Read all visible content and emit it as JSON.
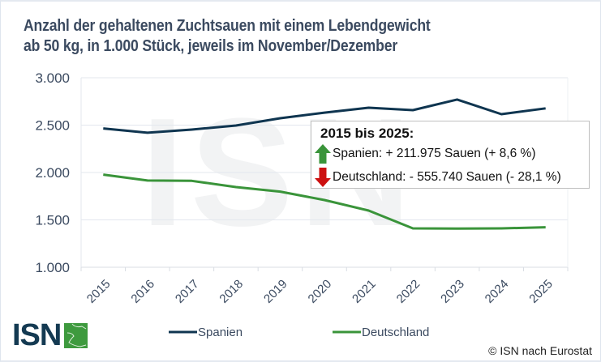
{
  "title": {
    "line1": "Anzahl der gehaltenen Zuchtsauen mit einem Lebendgewicht",
    "line2": "ab 50 kg, in 1.000 Stück, jeweils im November/Dezember"
  },
  "watermark": "ISN",
  "annotation": {
    "title": "2015 bis 2025:",
    "rows": [
      {
        "icon": "arrow-up-icon",
        "color": "#3a943a",
        "text": "Spanien: + 211.975 Sauen (+ 8,6 %)"
      },
      {
        "icon": "arrow-down-icon",
        "color": "#cc1010",
        "text": "Deutschland: - 555.740 Sauen (- 28,1 %)"
      }
    ]
  },
  "logo": {
    "text": "ISN",
    "box_color": "#3e9a3e"
  },
  "source": "© ISN nach Eurostat",
  "chart_data": {
    "type": "line",
    "title": "Anzahl der gehaltenen Zuchtsauen mit einem Lebendgewicht ab 50 kg, in 1.000 Stück, jeweils im November/Dezember",
    "xlabel": "",
    "ylabel": "",
    "categories": [
      "2015",
      "2016",
      "2017",
      "2018",
      "2019",
      "2020",
      "2021",
      "2022",
      "2023",
      "2024",
      "2025"
    ],
    "ylim": [
      1000,
      3000
    ],
    "yticks": [
      1000,
      1500,
      2000,
      2500,
      3000
    ],
    "ytick_labels": [
      "1.000",
      "1.500",
      "2.000",
      "2.500",
      "3.000"
    ],
    "grid": true,
    "legend_position": "bottom",
    "series": [
      {
        "name": "Spanien",
        "color": "#0f3550",
        "values": [
          2465,
          2420,
          2453,
          2496,
          2573,
          2632,
          2684,
          2658,
          2770,
          2615,
          2677
        ]
      },
      {
        "name": "Deutschland",
        "color": "#3a943a",
        "values": [
          1978,
          1915,
          1912,
          1846,
          1798,
          1709,
          1598,
          1410,
          1408,
          1410,
          1422
        ]
      }
    ]
  }
}
